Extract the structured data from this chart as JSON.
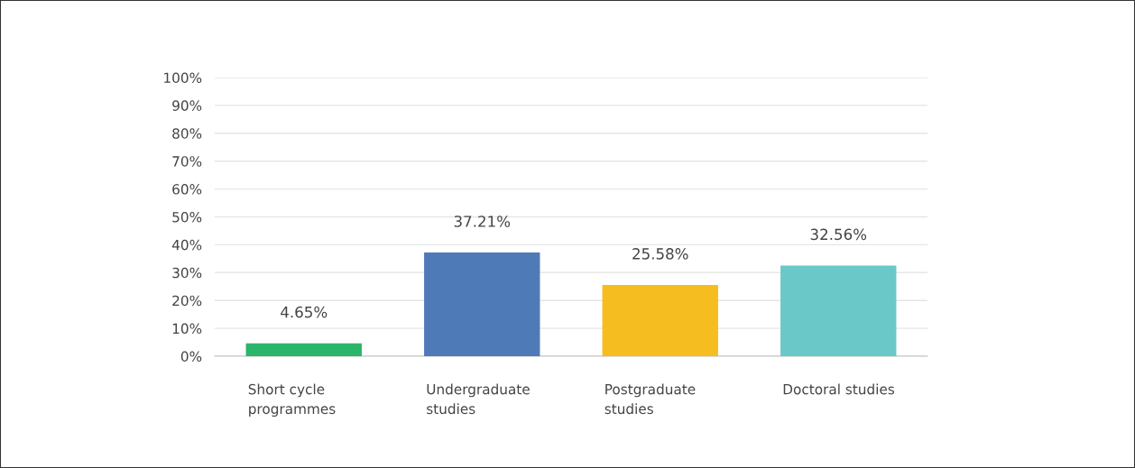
{
  "chart_data": {
    "type": "bar",
    "categories": [
      "Short cycle\nprogrammes",
      "Undergraduate\nstudies",
      "Postgraduate\nstudies",
      "Doctoral studies"
    ],
    "values": [
      4.65,
      37.21,
      25.58,
      32.56
    ],
    "value_labels": [
      "4.65%",
      "37.21%",
      "25.58%",
      "32.56%"
    ],
    "colors": [
      "#2bb56a",
      "#4e7bb8",
      "#f5bd1f",
      "#6bc8c9"
    ],
    "ylim": [
      0,
      100
    ],
    "yticks": [
      {
        "value": 0,
        "label": "0%"
      },
      {
        "value": 10,
        "label": "10%"
      },
      {
        "value": 20,
        "label": "20%"
      },
      {
        "value": 30,
        "label": "30%"
      },
      {
        "value": 40,
        "label": "40%"
      },
      {
        "value": 50,
        "label": "50%"
      },
      {
        "value": 60,
        "label": "60%"
      },
      {
        "value": 70,
        "label": "70%"
      },
      {
        "value": 80,
        "label": "80%"
      },
      {
        "value": 90,
        "label": "90%"
      },
      {
        "value": 100,
        "label": "100%"
      }
    ],
    "grid": "y"
  }
}
